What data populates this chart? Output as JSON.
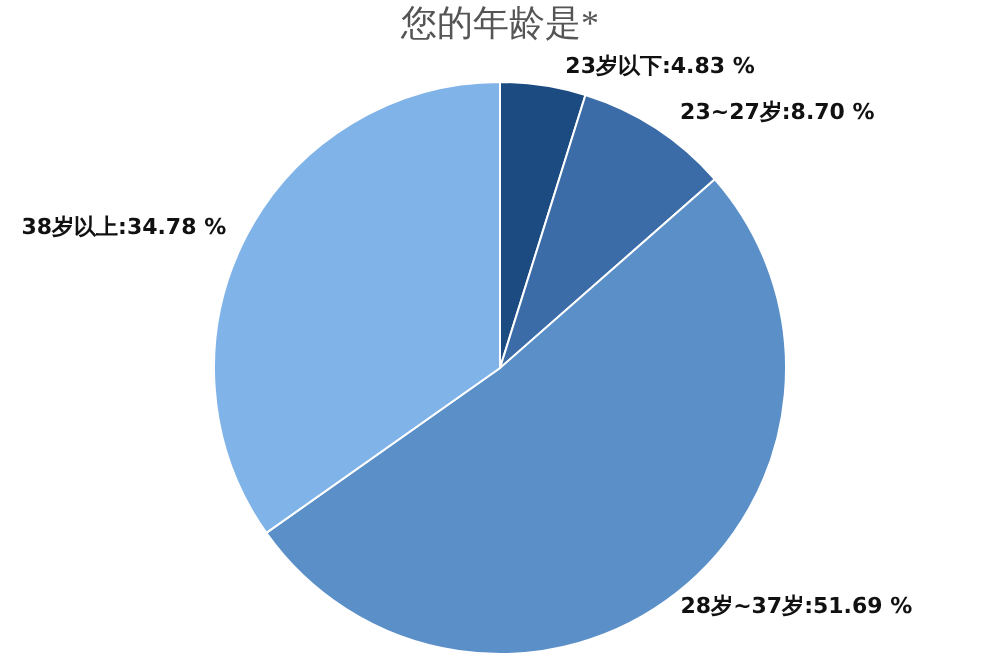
{
  "chart_data": {
    "type": "pie",
    "title": "您的年龄是*",
    "categories": [
      "23岁以下",
      "23~27岁",
      "28岁~37岁",
      "38岁以上"
    ],
    "values": [
      4.83,
      8.7,
      51.69,
      34.78
    ],
    "value_labels": [
      ":4.83 %",
      ":8.70 %",
      ":51.69 %",
      ":34.78 %"
    ],
    "colors": [
      "#1c4b82",
      "#3b6ca8",
      "#5a8fc8",
      "#80b3e8"
    ],
    "legend": false
  }
}
